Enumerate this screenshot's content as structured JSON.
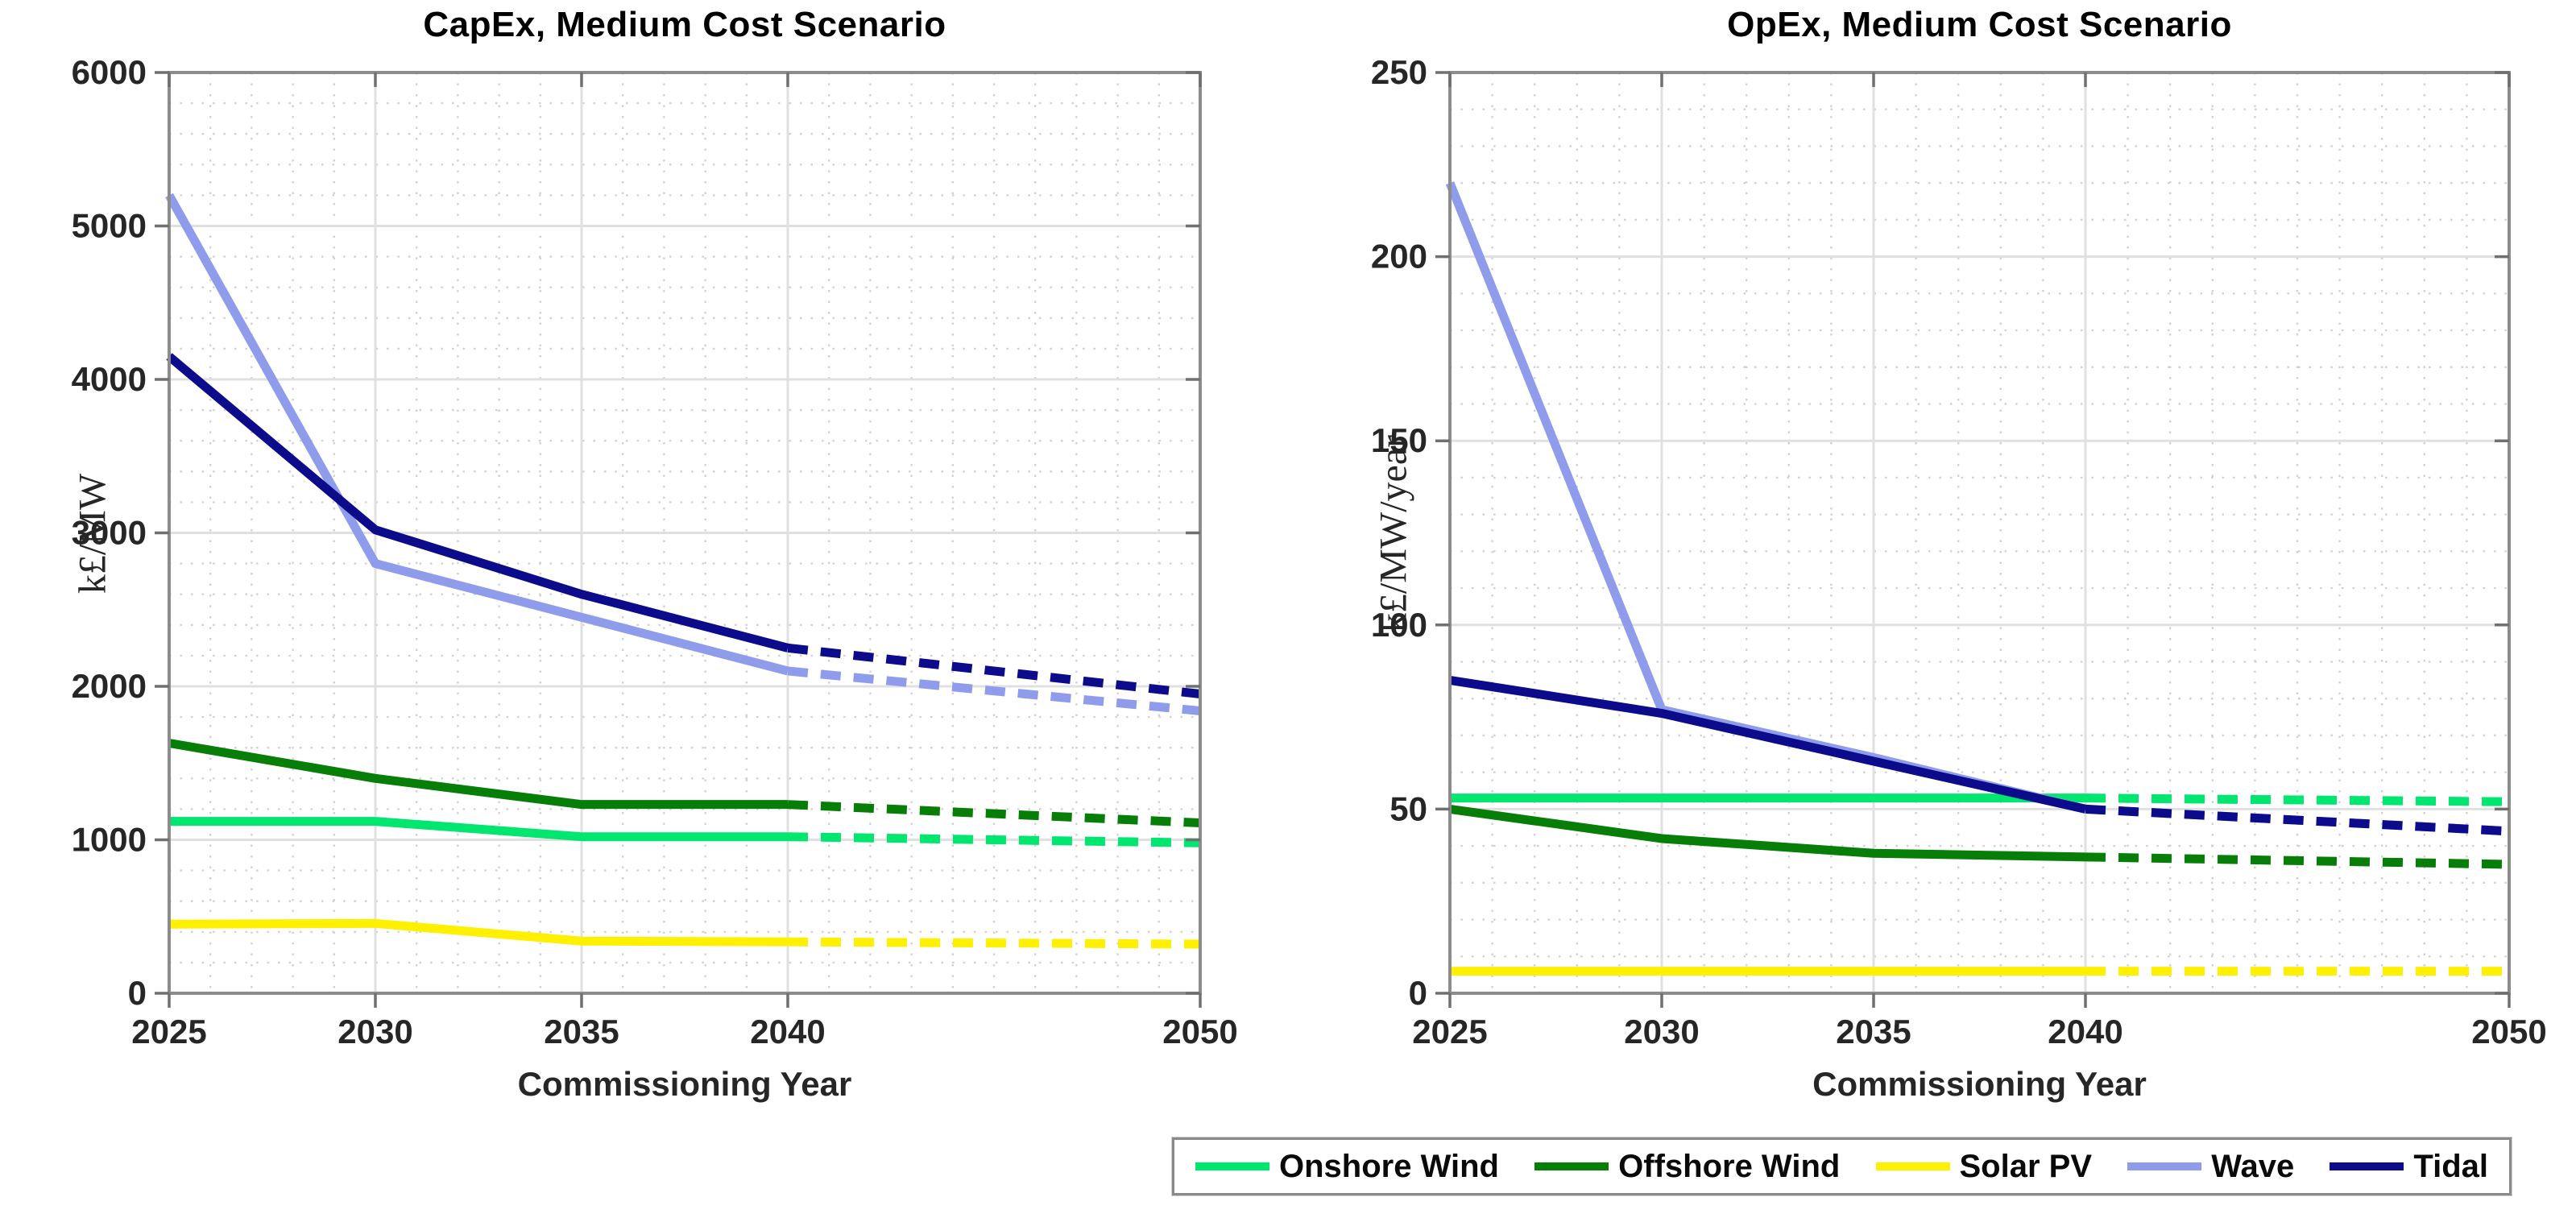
{
  "legend": {
    "entries": [
      {
        "label": "Onshore Wind",
        "color": "#00E66E"
      },
      {
        "label": "Offshore Wind",
        "color": "#077E07"
      },
      {
        "label": "Solar PV",
        "color": "#FFF000"
      },
      {
        "label": "Wave",
        "color": "#8E9CEB"
      },
      {
        "label": "Tidal",
        "color": "#0B0B8B"
      }
    ]
  },
  "chart_data": [
    {
      "type": "line",
      "title": "CapEx, Medium Cost Scenario",
      "xlabel": "Commissioning Year",
      "ylabel": "k£/MW",
      "x": [
        2025,
        2030,
        2035,
        2040,
        2050
      ],
      "xlim": [
        2025,
        2050
      ],
      "ylim": [
        0,
        6000
      ],
      "xticks": [
        2025,
        2030,
        2035,
        2040,
        2050
      ],
      "xtick_labels": [
        "2025",
        "2030",
        "2035",
        "2040",
        "2050"
      ],
      "yticks": [
        0,
        1000,
        2000,
        3000,
        4000,
        5000,
        6000
      ],
      "ytick_labels": [
        "0",
        "1000",
        "2000",
        "3000",
        "4000",
        "5000",
        "6000"
      ],
      "grid": "major solid + dotted minor mesh",
      "x_minor_step": 1,
      "y_minor_step": 200,
      "dashed_from_x": 2040,
      "legend_position": "below-right (shared)",
      "series": [
        {
          "name": "Onshore Wind",
          "color": "#00E66E",
          "values": [
            1120,
            1120,
            1020,
            1020,
            980
          ]
        },
        {
          "name": "Offshore Wind",
          "color": "#077E07",
          "values": [
            1630,
            1400,
            1230,
            1230,
            1110
          ]
        },
        {
          "name": "Solar PV",
          "color": "#FFF000",
          "values": [
            450,
            455,
            340,
            335,
            320
          ]
        },
        {
          "name": "Wave",
          "color": "#8E9CEB",
          "values": [
            5200,
            2800,
            2450,
            2100,
            1840
          ]
        },
        {
          "name": "Tidal",
          "color": "#0B0B8B",
          "values": [
            4150,
            3020,
            2600,
            2250,
            1950
          ]
        }
      ]
    },
    {
      "type": "line",
      "title": "OpEx, Medium Cost Scenario",
      "xlabel": "Commissioning Year",
      "ylabel": "k£/MW/year",
      "x": [
        2025,
        2030,
        2035,
        2040,
        2050
      ],
      "xlim": [
        2025,
        2050
      ],
      "ylim": [
        0,
        250
      ],
      "xticks": [
        2025,
        2030,
        2035,
        2040,
        2050
      ],
      "xtick_labels": [
        "2025",
        "2030",
        "2035",
        "2040",
        "2050"
      ],
      "yticks": [
        0,
        50,
        100,
        150,
        200,
        250
      ],
      "ytick_labels": [
        "0",
        "50",
        "100",
        "150",
        "200",
        "250"
      ],
      "grid": "major solid + dotted minor mesh",
      "x_minor_step": 1,
      "y_minor_step": 10,
      "dashed_from_x": 2040,
      "legend_position": "below-right (shared)",
      "series": [
        {
          "name": "Onshore Wind",
          "color": "#00E66E",
          "values": [
            53,
            53,
            53,
            53,
            52
          ]
        },
        {
          "name": "Offshore Wind",
          "color": "#077E07",
          "values": [
            50,
            42,
            38,
            37,
            35
          ]
        },
        {
          "name": "Solar PV",
          "color": "#FFF000",
          "values": [
            6,
            6,
            6,
            6,
            6
          ]
        },
        {
          "name": "Wave",
          "color": "#8E9CEB",
          "values": [
            220,
            77,
            64,
            50,
            44
          ]
        },
        {
          "name": "Tidal",
          "color": "#0B0B8B",
          "values": [
            85,
            76,
            63,
            50,
            44
          ]
        }
      ]
    }
  ]
}
